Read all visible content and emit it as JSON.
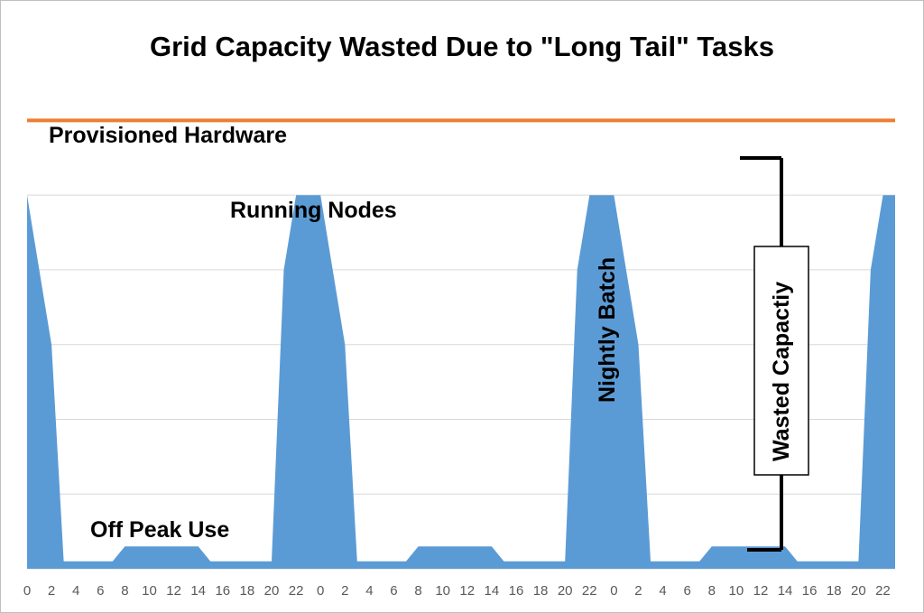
{
  "chart_data": {
    "type": "area",
    "title": "Grid Capacity Wasted Due to \"Long Tail\" Tasks",
    "x_tick_labels": [
      "0",
      "2",
      "4",
      "6",
      "8",
      "10",
      "12",
      "14",
      "16",
      "18",
      "20",
      "22",
      "0",
      "2",
      "4",
      "6",
      "8",
      "10",
      "12",
      "14",
      "16",
      "18",
      "20",
      "22",
      "0",
      "2",
      "4",
      "6",
      "8",
      "10",
      "12",
      "14",
      "16",
      "18",
      "20",
      "22"
    ],
    "x": [
      0,
      1,
      2,
      3,
      4,
      5,
      6,
      7,
      8,
      9,
      10,
      11,
      12,
      13,
      14,
      15,
      16,
      17,
      18,
      19,
      20,
      21,
      22,
      23,
      24,
      25,
      26,
      27,
      28,
      29,
      30,
      31,
      32,
      33,
      34,
      35,
      36,
      37,
      38,
      39,
      40,
      41,
      42,
      43,
      44,
      45,
      46,
      47,
      48,
      49,
      50,
      51,
      52,
      53,
      54,
      55,
      56,
      57,
      58,
      59,
      60,
      61,
      62,
      63,
      64,
      65,
      66,
      67,
      68,
      69,
      70,
      71
    ],
    "series": [
      {
        "values": [
          5.0,
          4.0,
          3.0,
          0.1,
          0.1,
          0.1,
          0.1,
          0.1,
          0.3,
          0.3,
          0.3,
          0.3,
          0.3,
          0.3,
          0.3,
          0.1,
          0.1,
          0.1,
          0.1,
          0.1,
          0.1,
          4.0,
          5.0,
          5.0,
          5.0,
          4.0,
          3.0,
          0.1,
          0.1,
          0.1,
          0.1,
          0.1,
          0.3,
          0.3,
          0.3,
          0.3,
          0.3,
          0.3,
          0.3,
          0.1,
          0.1,
          0.1,
          0.1,
          0.1,
          0.1,
          4.0,
          5.0,
          5.0,
          5.0,
          4.0,
          3.0,
          0.1,
          0.1,
          0.1,
          0.1,
          0.1,
          0.3,
          0.3,
          0.3,
          0.3,
          0.3,
          0.3,
          0.3,
          0.1,
          0.1,
          0.1,
          0.1,
          0.1,
          0.1,
          4.0,
          5.0,
          5.0
        ],
        "color": "#5b9bd5"
      }
    ],
    "provisioned_level": 6.0,
    "ylim": [
      0,
      6.5
    ],
    "grid": true,
    "annotations": {
      "provisioned": "Provisioned Hardware",
      "running": "Running Nodes",
      "nightly": "Nightly Batch",
      "offpeak": "Off Peak Use",
      "wasted": "Wasted Capactiy"
    },
    "colors": {
      "area": "#5b9bd5",
      "provisioned_line": "#ed7d31",
      "grid": "#d9d9d9"
    }
  }
}
